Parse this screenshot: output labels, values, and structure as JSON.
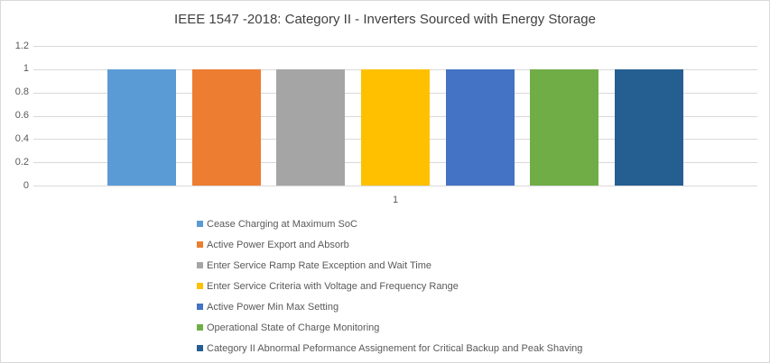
{
  "theme": {
    "background": "#FFFFFF",
    "border": "#D9D9D9",
    "gridline": "#D9D9D9",
    "title_text": "#404040",
    "axis_text": "#595959",
    "legend_text": "#595959"
  },
  "chart_data": {
    "type": "bar",
    "title": "IEEE 1547 -2018: Category II - Inverters Sourced with Energy Storage",
    "categories": [
      "1"
    ],
    "series": [
      {
        "name": "Cease Charging at Maximum SoC",
        "color": "#5B9BD5",
        "values": [
          1
        ]
      },
      {
        "name": "Active Power Export and Absorb",
        "color": "#ED7D31",
        "values": [
          1
        ]
      },
      {
        "name": "Enter Service Ramp Rate Exception and Wait Time",
        "color": "#A5A5A5",
        "values": [
          1
        ]
      },
      {
        "name": "Enter Service Criteria with Voltage and Frequency Range",
        "color": "#FFC000",
        "values": [
          1
        ]
      },
      {
        "name": "Active Power Min Max Setting",
        "color": "#4472C4",
        "values": [
          1
        ]
      },
      {
        "name": "Operational State of Charge Monitoring",
        "color": "#70AD47",
        "values": [
          1
        ]
      },
      {
        "name": "Category II Abnormal Peformance Assignement for Critical Backup and Peak Shaving",
        "color": "#255E91",
        "values": [
          1
        ]
      }
    ],
    "xlabel": "",
    "ylabel": "",
    "ylim": [
      0,
      1.2
    ],
    "yticks": [
      {
        "label": "1.2",
        "value": 1.2
      },
      {
        "label": "1",
        "value": 1.0
      },
      {
        "label": "0.8",
        "value": 0.8
      },
      {
        "label": "0.6",
        "value": 0.6
      },
      {
        "label": "0.4",
        "value": 0.4
      },
      {
        "label": "0.2",
        "value": 0.2
      },
      {
        "label": "0",
        "value": 0.0
      }
    ],
    "grid": true,
    "legend_position": "bottom-left"
  }
}
